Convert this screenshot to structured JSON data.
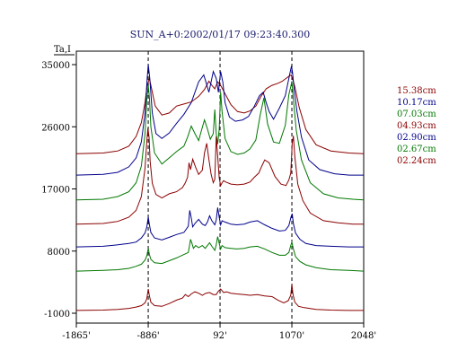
{
  "chart_data": {
    "type": "line",
    "title": "SUN_A+0:2002/01/17 09:23:40.300",
    "ylabel": "Ta,I",
    "xlabel": "",
    "x_tick_labels": [
      "-1865'",
      "-886'",
      "92'",
      "1070'",
      "2048'"
    ],
    "x_ticks": [
      -1865,
      -886,
      92,
      1070,
      2048
    ],
    "xlim": [
      -1865,
      2048
    ],
    "y_tick_labels": [
      "35000",
      "26000",
      "17000",
      "8000",
      "-1000"
    ],
    "y_ticks": [
      35000,
      26000,
      17000,
      8000,
      -1000
    ],
    "ylim": [
      -1000,
      35000
    ],
    "dashed_lines_x": [
      -886,
      92,
      1070
    ],
    "grid": false,
    "legend_position": "right",
    "series": [
      {
        "name": "15.38cm",
        "color": "#8b0000",
        "x": [
          -1865,
          -1500,
          -1300,
          -1150,
          -1050,
          -980,
          -930,
          -900,
          -870,
          -840,
          -790,
          -700,
          -600,
          -500,
          -400,
          -300,
          -200,
          -120,
          -60,
          -20,
          20,
          60,
          100,
          160,
          240,
          330,
          420,
          500,
          580,
          650,
          720,
          800,
          880,
          940,
          990,
          1030,
          1060,
          1080,
          1110,
          1170,
          1260,
          1400,
          1600,
          1850,
          2048
        ],
        "y": [
          22100,
          22200,
          22500,
          23200,
          24600,
          26600,
          29500,
          32000,
          33000,
          31500,
          29000,
          27700,
          28000,
          29000,
          29300,
          29600,
          30400,
          31400,
          32600,
          32000,
          31500,
          32500,
          32000,
          30800,
          29200,
          28200,
          28000,
          28300,
          29000,
          30400,
          31500,
          32000,
          32300,
          32600,
          33000,
          33300,
          33500,
          33000,
          31800,
          28800,
          25600,
          23400,
          22500,
          22200,
          22100
        ]
      },
      {
        "name": "10.17cm",
        "color": "#00008b",
        "x": [
          -1865,
          -1500,
          -1300,
          -1150,
          -1050,
          -980,
          -930,
          -900,
          -885,
          -865,
          -830,
          -780,
          -700,
          -600,
          -500,
          -400,
          -300,
          -200,
          -130,
          -100,
          -60,
          -30,
          0,
          40,
          70,
          100,
          130,
          160,
          220,
          300,
          400,
          480,
          560,
          630,
          680,
          720,
          760,
          820,
          900,
          980,
          1040,
          1065,
          1080,
          1100,
          1140,
          1200,
          1300,
          1450,
          1650,
          1850,
          2048
        ],
        "y": [
          19000,
          19100,
          19400,
          20200,
          21500,
          23800,
          28000,
          33000,
          35000,
          33000,
          28000,
          25000,
          24300,
          25100,
          26500,
          27800,
          29500,
          32500,
          33500,
          32500,
          31000,
          32500,
          34000,
          33000,
          31000,
          34000,
          32500,
          29500,
          27400,
          26800,
          27000,
          27500,
          29000,
          30500,
          31000,
          29500,
          28200,
          27100,
          28700,
          30500,
          33600,
          34800,
          33800,
          31500,
          28200,
          24500,
          21200,
          19800,
          19200,
          19000,
          19000
        ]
      },
      {
        "name": "07.03cm",
        "color": "#007700",
        "x": [
          -1865,
          -1500,
          -1300,
          -1150,
          -1050,
          -980,
          -930,
          -905,
          -885,
          -870,
          -850,
          -800,
          -700,
          -600,
          -500,
          -400,
          -350,
          -300,
          -250,
          -200,
          -160,
          -120,
          -80,
          -40,
          0,
          20,
          40,
          60,
          80,
          100,
          120,
          160,
          240,
          330,
          420,
          500,
          580,
          640,
          690,
          740,
          820,
          900,
          980,
          1030,
          1055,
          1070,
          1090,
          1130,
          1200,
          1320,
          1500,
          1700,
          1900,
          2048
        ],
        "y": [
          15400,
          15500,
          15900,
          16600,
          17900,
          20300,
          25000,
          30000,
          32000,
          30200,
          26000,
          22200,
          20600,
          21500,
          22400,
          23200,
          24500,
          26100,
          25000,
          24000,
          25500,
          27000,
          25700,
          24200,
          25000,
          28500,
          25000,
          23500,
          25600,
          31000,
          28200,
          24300,
          22400,
          22000,
          22200,
          22800,
          24100,
          27800,
          30200,
          26400,
          23800,
          23600,
          26200,
          30700,
          31800,
          32600,
          30000,
          25500,
          21200,
          17900,
          16300,
          15700,
          15500,
          15400
        ]
      },
      {
        "name": "04.93cm",
        "color": "#8b0000",
        "x": [
          -1865,
          -1500,
          -1300,
          -1150,
          -1050,
          -980,
          -930,
          -905,
          -890,
          -875,
          -860,
          -830,
          -780,
          -700,
          -600,
          -500,
          -420,
          -380,
          -350,
          -330,
          -310,
          -280,
          -240,
          -200,
          -150,
          -120,
          -90,
          -60,
          -30,
          0,
          20,
          40,
          60,
          80,
          100,
          120,
          140,
          170,
          240,
          330,
          420,
          500,
          560,
          620,
          660,
          700,
          760,
          840,
          920,
          990,
          1030,
          1055,
          1075,
          1090,
          1110,
          1150,
          1220,
          1320,
          1500,
          1700,
          1900,
          2048
        ],
        "y": [
          11900,
          12000,
          12300,
          12900,
          13900,
          15900,
          20000,
          23900,
          25800,
          24500,
          21000,
          17800,
          16200,
          15700,
          16300,
          16600,
          17200,
          17900,
          18700,
          20800,
          19800,
          21300,
          20100,
          19100,
          19700,
          22200,
          23600,
          21300,
          19100,
          17900,
          18400,
          24600,
          21800,
          18600,
          17500,
          17900,
          18200,
          18000,
          17700,
          17600,
          17700,
          18000,
          18700,
          19300,
          20300,
          21200,
          20800,
          18800,
          17700,
          17500,
          18300,
          19300,
          23600,
          24700,
          21700,
          17700,
          15300,
          13500,
          12400,
          12100,
          11900,
          11900
        ]
      },
      {
        "name": "02.90cm",
        "color": "#00008b",
        "x": [
          -1865,
          -1500,
          -1300,
          -1150,
          -1050,
          -980,
          -930,
          -905,
          -886,
          -870,
          -850,
          -800,
          -700,
          -600,
          -500,
          -400,
          -340,
          -320,
          -300,
          -280,
          -250,
          -200,
          -150,
          -110,
          -80,
          -50,
          -20,
          20,
          40,
          60,
          80,
          100,
          120,
          160,
          240,
          320,
          420,
          500,
          600,
          700,
          800,
          900,
          980,
          1030,
          1060,
          1075,
          1090,
          1120,
          1180,
          1260,
          1400,
          1600,
          1850,
          2048
        ],
        "y": [
          8600,
          8700,
          8900,
          9100,
          9300,
          9900,
          10600,
          11500,
          12900,
          11800,
          10700,
          9900,
          9600,
          10000,
          10400,
          10700,
          11600,
          13900,
          12800,
          11500,
          12000,
          12600,
          11900,
          11700,
          12200,
          13100,
          12400,
          11800,
          12500,
          14300,
          12900,
          11800,
          12400,
          12200,
          11900,
          11800,
          11900,
          12200,
          12400,
          11800,
          11300,
          10900,
          11000,
          11700,
          13000,
          13400,
          12000,
          10600,
          9700,
          9100,
          8800,
          8700,
          8600,
          8600
        ]
      },
      {
        "name": "02.67cm",
        "color": "#007700",
        "x": [
          -1865,
          -1500,
          -1300,
          -1150,
          -1050,
          -980,
          -930,
          -905,
          -886,
          -870,
          -850,
          -800,
          -700,
          -600,
          -500,
          -400,
          -340,
          -310,
          -290,
          -270,
          -240,
          -200,
          -150,
          -110,
          -80,
          -50,
          -20,
          20,
          40,
          60,
          80,
          100,
          120,
          160,
          240,
          320,
          420,
          500,
          600,
          700,
          800,
          900,
          980,
          1030,
          1055,
          1070,
          1090,
          1120,
          1180,
          1260,
          1400,
          1600,
          1850,
          2048
        ],
        "y": [
          5100,
          5200,
          5300,
          5500,
          5800,
          6100,
          6700,
          7300,
          8400,
          7500,
          6800,
          6300,
          6200,
          6600,
          7000,
          7500,
          7800,
          9700,
          9100,
          8400,
          8800,
          8500,
          8800,
          8400,
          8800,
          9200,
          8700,
          8100,
          8900,
          10100,
          9100,
          8300,
          8800,
          8500,
          8400,
          8300,
          8400,
          8600,
          8700,
          8300,
          7800,
          7400,
          7400,
          7800,
          8800,
          9300,
          8300,
          7200,
          6500,
          6000,
          5600,
          5300,
          5200,
          5100
        ]
      },
      {
        "name": "02.24cm",
        "color": "#8b0000",
        "x": [
          -1865,
          -1500,
          -1300,
          -1150,
          -1050,
          -980,
          -930,
          -905,
          -886,
          -870,
          -850,
          -800,
          -700,
          -600,
          -500,
          -420,
          -380,
          -340,
          -300,
          -250,
          -200,
          -150,
          -100,
          -50,
          0,
          40,
          70,
          100,
          140,
          180,
          240,
          320,
          420,
          500,
          600,
          700,
          800,
          880,
          960,
          1020,
          1055,
          1070,
          1085,
          1110,
          1160,
          1240,
          1400,
          1600,
          1850,
          2048
        ],
        "y": [
          -600,
          -550,
          -450,
          -300,
          -100,
          100,
          500,
          1100,
          2500,
          1500,
          600,
          100,
          0,
          400,
          900,
          1200,
          1700,
          1400,
          1800,
          2100,
          1900,
          1600,
          1900,
          2000,
          1700,
          1700,
          2200,
          2500,
          2000,
          2100,
          1900,
          1800,
          1700,
          1600,
          1700,
          1500,
          1400,
          900,
          500,
          800,
          1600,
          3200,
          1800,
          600,
          0,
          -200,
          -450,
          -550,
          -600,
          -600
        ]
      }
    ]
  }
}
